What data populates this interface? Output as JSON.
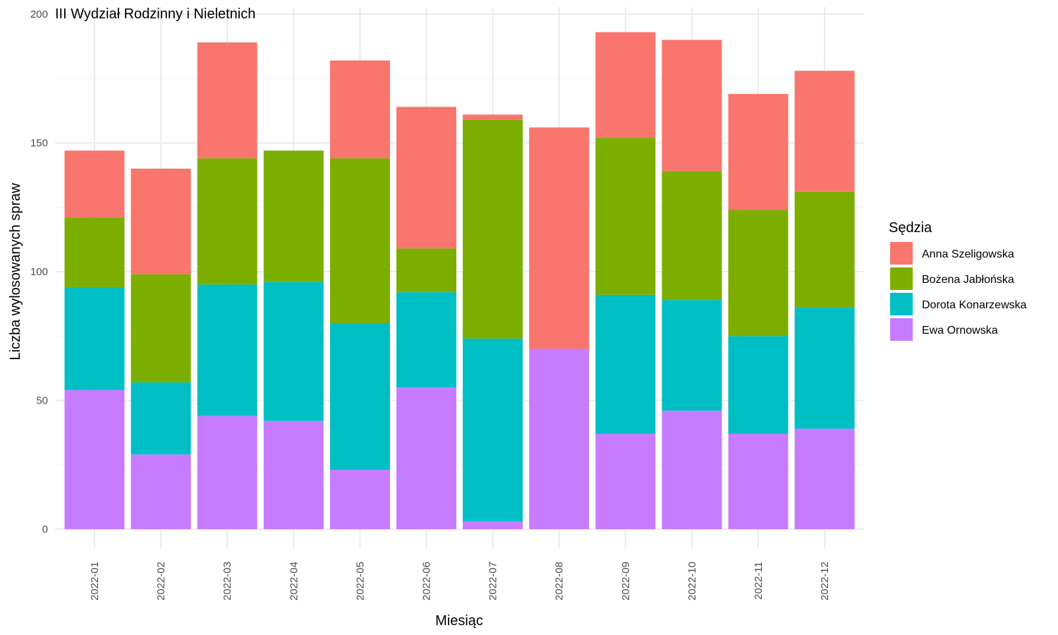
{
  "chart_data": {
    "type": "bar",
    "stacked": true,
    "title": "III Wydział Rodzinny i Nieletnich",
    "xlabel": "Miesiąc",
    "ylabel": "Liczba wylosowanych spraw",
    "ylim": [
      0,
      200
    ],
    "yticks": [
      0,
      50,
      100,
      150,
      200
    ],
    "grid": true,
    "legend_position": "right",
    "legend_title": "Sędzia",
    "categories": [
      "2022-01",
      "2022-02",
      "2022-03",
      "2022-04",
      "2022-05",
      "2022-06",
      "2022-07",
      "2022-08",
      "2022-09",
      "2022-10",
      "2022-11",
      "2022-12"
    ],
    "series": [
      {
        "name": "Anna Szeligowska",
        "color": "#F8766D",
        "values": [
          26,
          41,
          45,
          0,
          38,
          55,
          2,
          86,
          41,
          51,
          45,
          47
        ]
      },
      {
        "name": "Bożena Jabłońska",
        "color": "#7CAE00",
        "values": [
          27,
          42,
          49,
          51,
          64,
          17,
          85,
          0,
          61,
          50,
          49,
          45
        ]
      },
      {
        "name": "Dorota Konarzewska",
        "color": "#00BFC4",
        "values": [
          40,
          28,
          51,
          54,
          57,
          37,
          71,
          0,
          54,
          43,
          38,
          47
        ]
      },
      {
        "name": "Ewa Ornowska",
        "color": "#C77CFF",
        "values": [
          54,
          29,
          44,
          42,
          23,
          55,
          3,
          70,
          37,
          46,
          37,
          39
        ]
      }
    ]
  }
}
